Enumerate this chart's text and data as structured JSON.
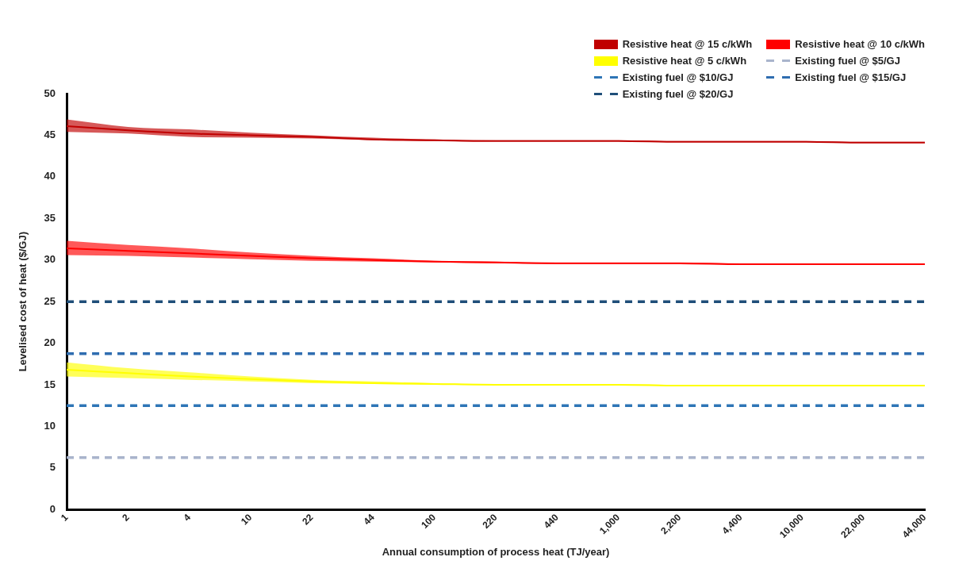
{
  "chart_data": {
    "type": "line",
    "xlabel": "Annual consumption of process heat (TJ/year)",
    "ylabel": "Levelised cost of heat ($/GJ)",
    "categories": [
      "1",
      "2",
      "4",
      "10",
      "22",
      "44",
      "100",
      "220",
      "440",
      "1,000",
      "2,200",
      "4,400",
      "10,000",
      "22,000",
      "44,000"
    ],
    "ylim": [
      0,
      50
    ],
    "yticks": [
      0,
      5,
      10,
      15,
      20,
      25,
      30,
      35,
      40,
      45,
      50
    ],
    "grid": false,
    "legend": "top right",
    "series": [
      {
        "name": "Resistive heat @ 15 c/kWh",
        "type": "line",
        "color": "#c00000",
        "values": [
          46.1,
          45.6,
          45.2,
          45.0,
          44.8,
          44.5,
          44.4,
          44.3,
          44.3,
          44.3,
          44.2,
          44.2,
          44.2,
          44.1,
          44.1
        ],
        "lower": [
          45.4,
          45.2,
          44.8,
          44.7,
          44.6,
          44.4,
          44.3,
          44.3,
          44.3,
          44.3,
          44.2,
          44.2,
          44.2,
          44.1,
          44.1
        ],
        "upper": [
          46.9,
          46.0,
          45.7,
          45.3,
          45.0,
          44.7,
          44.5,
          44.4,
          44.4,
          44.4,
          44.3,
          44.3,
          44.3,
          44.2,
          44.2
        ]
      },
      {
        "name": "Resistive heat @ 10 c/kWh",
        "type": "line",
        "color": "#ff0000",
        "values": [
          31.4,
          31.1,
          30.8,
          30.5,
          30.2,
          30.0,
          29.8,
          29.7,
          29.6,
          29.6,
          29.6,
          29.5,
          29.5,
          29.5,
          29.5
        ],
        "lower": [
          30.6,
          30.5,
          30.3,
          30.1,
          29.9,
          29.8,
          29.7,
          29.6,
          29.6,
          29.6,
          29.5,
          29.5,
          29.5,
          29.4,
          29.4
        ],
        "upper": [
          32.3,
          31.8,
          31.4,
          30.9,
          30.5,
          30.2,
          29.9,
          29.8,
          29.7,
          29.7,
          29.7,
          29.6,
          29.6,
          29.6,
          29.6
        ]
      },
      {
        "name": "Resistive heat @ 5 c/kWh",
        "type": "line",
        "color": "#ffff00",
        "values": [
          16.8,
          16.4,
          16.0,
          15.7,
          15.4,
          15.2,
          15.1,
          15.0,
          15.0,
          15.0,
          14.9,
          14.9,
          14.9,
          14.9,
          14.9
        ],
        "lower": [
          16.0,
          15.8,
          15.6,
          15.4,
          15.2,
          15.1,
          15.0,
          15.0,
          15.0,
          14.9,
          14.9,
          14.9,
          14.8,
          14.8,
          14.8
        ],
        "upper": [
          17.7,
          17.0,
          16.5,
          16.0,
          15.6,
          15.4,
          15.2,
          15.1,
          15.1,
          15.1,
          15.0,
          15.0,
          15.0,
          15.0,
          15.0
        ]
      },
      {
        "name": "Existing fuel @ $5/GJ",
        "type": "line",
        "line_style": "dashed",
        "color": "#a9b4cc",
        "values": [
          6.25,
          6.25,
          6.25,
          6.25,
          6.25,
          6.25,
          6.25,
          6.25,
          6.25,
          6.25,
          6.25,
          6.25,
          6.25,
          6.25,
          6.25
        ]
      },
      {
        "name": "Existing fuel @ $10/GJ",
        "type": "line",
        "line_style": "dashed",
        "color": "#2e75b6",
        "values": [
          12.5,
          12.5,
          12.5,
          12.5,
          12.5,
          12.5,
          12.5,
          12.5,
          12.5,
          12.5,
          12.5,
          12.5,
          12.5,
          12.5,
          12.5
        ]
      },
      {
        "name": "Existing fuel @ $15/GJ",
        "type": "line",
        "line_style": "dashed",
        "color": "#2f6db0",
        "values": [
          18.75,
          18.75,
          18.75,
          18.75,
          18.75,
          18.75,
          18.75,
          18.75,
          18.75,
          18.75,
          18.75,
          18.75,
          18.75,
          18.75,
          18.75
        ]
      },
      {
        "name": "Existing fuel @ $20/GJ",
        "type": "line",
        "line_style": "dashed",
        "color": "#1f4e79",
        "values": [
          25,
          25,
          25,
          25,
          25,
          25,
          25,
          25,
          25,
          25,
          25,
          25,
          25,
          25,
          25
        ]
      }
    ]
  }
}
